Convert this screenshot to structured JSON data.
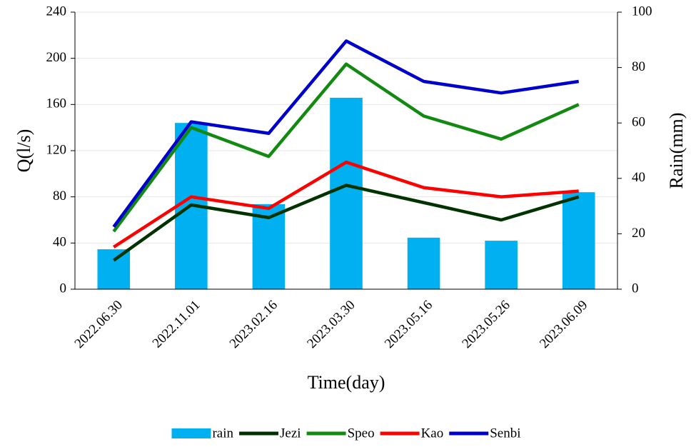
{
  "chart_data": {
    "type": "combo",
    "x_label": "Time(day)",
    "y_label": "Q(l/s)",
    "y2_label": "Rain(mm)",
    "categories": [
      "2022.06.30",
      "2022.11.01",
      "2023.02.16",
      "2023.03.30",
      "2023.05.16",
      "2023.05.26",
      "2023.06.09"
    ],
    "series": [
      {
        "name": "rain",
        "type": "bar",
        "axis": "y2",
        "color": "#00b0f0",
        "values": [
          14.4,
          60,
          30.7,
          69.1,
          18.6,
          17.5,
          35
        ]
      },
      {
        "name": "Jezi",
        "type": "line",
        "color": "#003300",
        "values": [
          25,
          73,
          62,
          90,
          75,
          60,
          80
        ]
      },
      {
        "name": "Speo",
        "type": "line",
        "color": "#128a12",
        "values": [
          50,
          140,
          115,
          195,
          150,
          130,
          160
        ]
      },
      {
        "name": "Kao",
        "type": "line",
        "color": "#ff0000",
        "values": [
          36.5,
          80,
          70,
          110,
          88,
          80,
          85
        ]
      },
      {
        "name": "Senbi",
        "type": "line",
        "color": "#0000cc",
        "values": [
          54,
          145,
          135,
          215,
          180,
          170,
          180
        ]
      }
    ],
    "ylim": [
      0,
      240
    ],
    "yticks": [
      0,
      40,
      80,
      120,
      160,
      200,
      240
    ],
    "y2lim": [
      0,
      100
    ],
    "y2ticks": [
      0,
      20,
      40,
      60,
      80,
      100
    ],
    "grid": true,
    "legend": "bottom"
  }
}
